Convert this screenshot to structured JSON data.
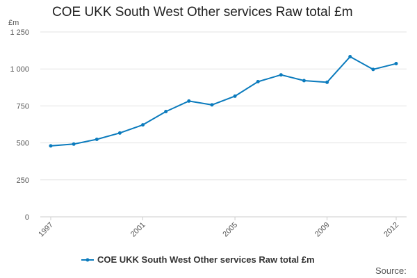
{
  "chart_data": {
    "type": "line",
    "title": "COE UKK South West Other services Raw total £m",
    "ylabel": "£m",
    "xlabel": "",
    "x": [
      1997,
      1998,
      1999,
      2000,
      2001,
      2002,
      2003,
      2004,
      2005,
      2006,
      2007,
      2008,
      2009,
      2010,
      2011,
      2012
    ],
    "x_tick_labels": [
      "1997",
      "2001",
      "2005",
      "2009",
      "2012"
    ],
    "y_tick_labels": [
      "0",
      "250",
      "500",
      "750",
      "1 000",
      "1 250"
    ],
    "ylim": [
      0,
      1250
    ],
    "grid": true,
    "legend_position": "bottom",
    "series": [
      {
        "name": "COE UKK South West Other services Raw total £m",
        "color": "#0b7bbd",
        "values": [
          480,
          492,
          524,
          567,
          622,
          712,
          783,
          757,
          816,
          914,
          960,
          921,
          910,
          1083,
          997,
          1036
        ]
      }
    ],
    "source_label": "Source:"
  }
}
